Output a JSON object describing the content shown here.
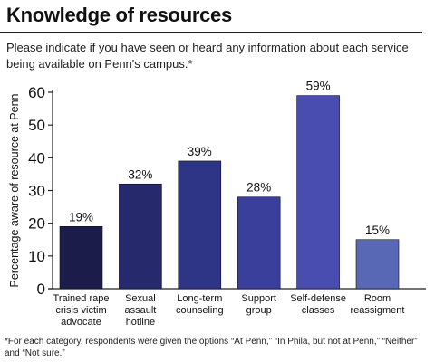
{
  "header": {
    "title": "Knowledge of resources",
    "subtitle": "Please indicate if you have seen or heard any information about each service being available on Penn's campus.*"
  },
  "footnote": "*For each category, respondents were given the options “At Penn,” “In Phila, but not at Penn,” “Neither” and “Not sure.”",
  "chart_data": {
    "type": "bar",
    "title": "",
    "xlabel": "",
    "ylabel": "Percentage aware of resource at Penn",
    "ylim": [
      0,
      60
    ],
    "yticks": [
      0,
      10,
      20,
      30,
      40,
      50,
      60
    ],
    "grid": false,
    "categories": [
      [
        "Trained rape",
        "crisis victim",
        "advocate"
      ],
      [
        "Sexual",
        "assault",
        "hotline"
      ],
      [
        "Long-term",
        "counseling"
      ],
      [
        "Support",
        "group"
      ],
      [
        "Self-defense",
        "classes"
      ],
      [
        "Room",
        "reassigment"
      ]
    ],
    "values": [
      19,
      32,
      39,
      28,
      59,
      15
    ],
    "value_labels": [
      "19%",
      "32%",
      "39%",
      "28%",
      "59%",
      "15%"
    ],
    "colors": [
      "#1c1c4a",
      "#262a6c",
      "#2e3486",
      "#3a3f9c",
      "#4a4db0",
      "#5868b4"
    ]
  }
}
